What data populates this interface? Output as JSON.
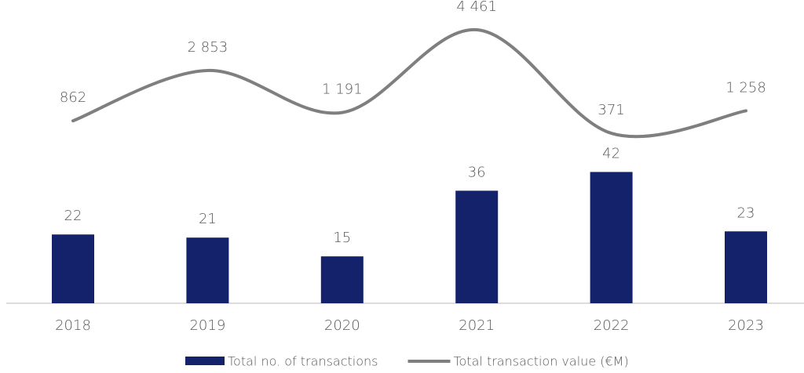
{
  "chart_data": {
    "type": "combo",
    "categories": [
      "2018",
      "2019",
      "2020",
      "2021",
      "2022",
      "2023"
    ],
    "series": [
      {
        "name": "Total no. of transactions",
        "type": "bar",
        "color": "#14226b",
        "values": [
          22,
          21,
          15,
          36,
          42,
          23
        ]
      },
      {
        "name": "Total transaction value (€M)",
        "type": "line",
        "axis": "y2",
        "color": "#7f7f7f",
        "values": [
          862,
          2853,
          1191,
          4461,
          371,
          1258
        ],
        "value_labels": [
          "862",
          "2 853",
          "1 191",
          "4 461",
          "371",
          "1 258"
        ]
      }
    ],
    "ylim": [
      0,
      92
    ],
    "y2lim": [
      -6350,
      5020
    ],
    "legend": "bottom"
  }
}
